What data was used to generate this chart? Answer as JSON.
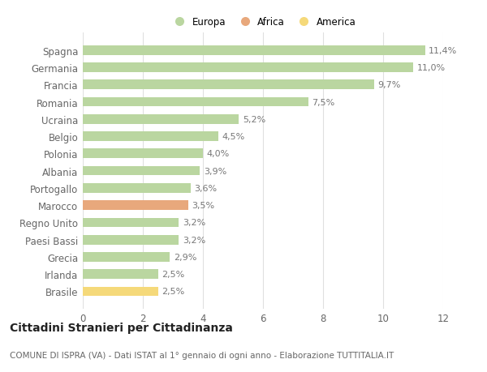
{
  "categories": [
    "Brasile",
    "Irlanda",
    "Grecia",
    "Paesi Bassi",
    "Regno Unito",
    "Marocco",
    "Portogallo",
    "Albania",
    "Polonia",
    "Belgio",
    "Ucraina",
    "Romania",
    "Francia",
    "Germania",
    "Spagna"
  ],
  "values": [
    2.5,
    2.5,
    2.9,
    3.2,
    3.2,
    3.5,
    3.6,
    3.9,
    4.0,
    4.5,
    5.2,
    7.5,
    9.7,
    11.0,
    11.4
  ],
  "labels": [
    "2,5%",
    "2,5%",
    "2,9%",
    "3,2%",
    "3,2%",
    "3,5%",
    "3,6%",
    "3,9%",
    "4,0%",
    "4,5%",
    "5,2%",
    "7,5%",
    "9,7%",
    "11,0%",
    "11,4%"
  ],
  "colors": [
    "#f5d97a",
    "#bad6a0",
    "#bad6a0",
    "#bad6a0",
    "#bad6a0",
    "#e8a87c",
    "#bad6a0",
    "#bad6a0",
    "#bad6a0",
    "#bad6a0",
    "#bad6a0",
    "#bad6a0",
    "#bad6a0",
    "#bad6a0",
    "#bad6a0"
  ],
  "legend_labels": [
    "Europa",
    "Africa",
    "America"
  ],
  "legend_colors": [
    "#bad6a0",
    "#e8a87c",
    "#f5d97a"
  ],
  "title": "Cittadini Stranieri per Cittadinanza",
  "subtitle": "COMUNE DI ISPRA (VA) - Dati ISTAT al 1° gennaio di ogni anno - Elaborazione TUTTITALIA.IT",
  "xlim": [
    0,
    12
  ],
  "xticks": [
    0,
    2,
    4,
    6,
    8,
    10,
    12
  ],
  "background_color": "#ffffff",
  "grid_color": "#e0e0e0",
  "title_fontsize": 10,
  "subtitle_fontsize": 7.5,
  "tick_fontsize": 8.5,
  "label_fontsize": 8
}
